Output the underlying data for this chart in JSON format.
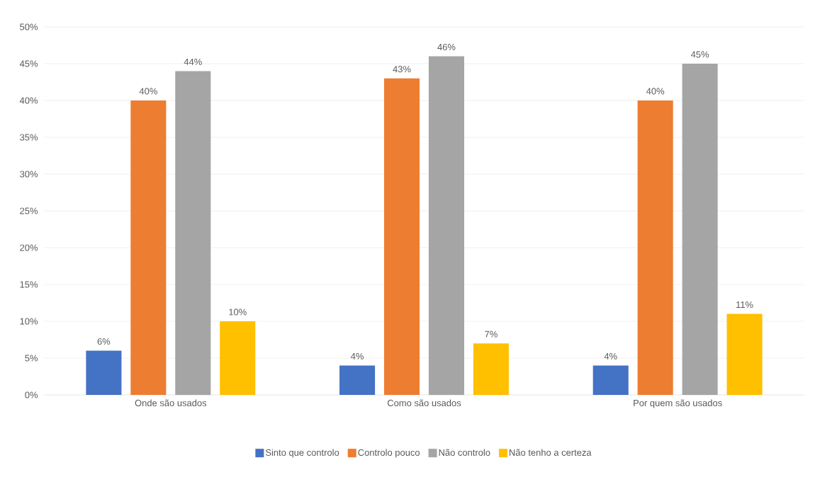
{
  "chart_data": {
    "type": "bar",
    "categories": [
      "Onde são usados",
      "Como são usados",
      "Por quem são usados"
    ],
    "series": [
      {
        "name": "Sinto que controlo",
        "color": "#4472c4",
        "values": [
          6,
          4,
          4
        ],
        "value_labels": [
          "6%",
          "4%",
          "4%"
        ]
      },
      {
        "name": "Controlo pouco",
        "color": "#ed7d31",
        "values": [
          40,
          43,
          40
        ],
        "value_labels": [
          "40%",
          "43%",
          "40%"
        ]
      },
      {
        "name": "Não controlo",
        "color": "#a5a5a5",
        "values": [
          44,
          46,
          45
        ],
        "value_labels": [
          "44%",
          "46%",
          "45%"
        ]
      },
      {
        "name": "Não tenho a certeza",
        "color": "#ffc000",
        "values": [
          10,
          7,
          11
        ],
        "value_labels": [
          "10%",
          "7%",
          "11%"
        ]
      }
    ],
    "ylim": [
      0,
      50
    ],
    "yticks": [
      {
        "value": 0,
        "label": "0%"
      },
      {
        "value": 5,
        "label": "5%"
      },
      {
        "value": 10,
        "label": "10%"
      },
      {
        "value": 15,
        "label": "15%"
      },
      {
        "value": 20,
        "label": "20%"
      },
      {
        "value": 25,
        "label": "25%"
      },
      {
        "value": 30,
        "label": "30%"
      },
      {
        "value": 35,
        "label": "35%"
      },
      {
        "value": 40,
        "label": "40%"
      },
      {
        "value": 45,
        "label": "45%"
      },
      {
        "value": 50,
        "label": "50%"
      }
    ],
    "grid": "y",
    "legend": "bottom"
  }
}
